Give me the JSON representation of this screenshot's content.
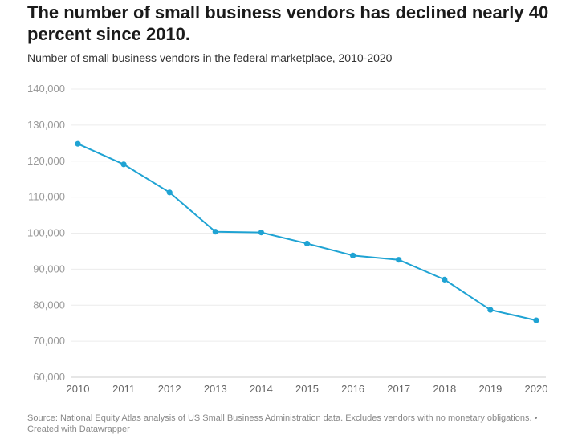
{
  "chart_data": {
    "type": "line",
    "title": "The number of small business vendors has declined nearly 40 percent since 2010.",
    "subtitle": "Number of small business vendors in the federal marketplace, 2010-2020",
    "xlabel": "",
    "ylabel": "",
    "x": [
      "2010",
      "2011",
      "2012",
      "2013",
      "2014",
      "2015",
      "2016",
      "2017",
      "2018",
      "2019",
      "2020"
    ],
    "series": [
      {
        "values": [
          124800,
          119100,
          111300,
          100400,
          100200,
          97100,
          93800,
          92600,
          87100,
          78700,
          75800
        ]
      }
    ],
    "ylim": [
      60000,
      140000
    ],
    "yticks": [
      60000,
      70000,
      80000,
      90000,
      100000,
      110000,
      120000,
      130000,
      140000
    ],
    "ytick_labels": [
      "60,000",
      "70,000",
      "80,000",
      "90,000",
      "100,000",
      "110,000",
      "120,000",
      "130,000",
      "140,000"
    ],
    "grid": true,
    "line_color": "#1fa3d3",
    "footer": "Source: National Equity Atlas analysis of US Small Business Administration data. Excludes vendors with no monetary obligations. • Created with Datawrapper"
  }
}
